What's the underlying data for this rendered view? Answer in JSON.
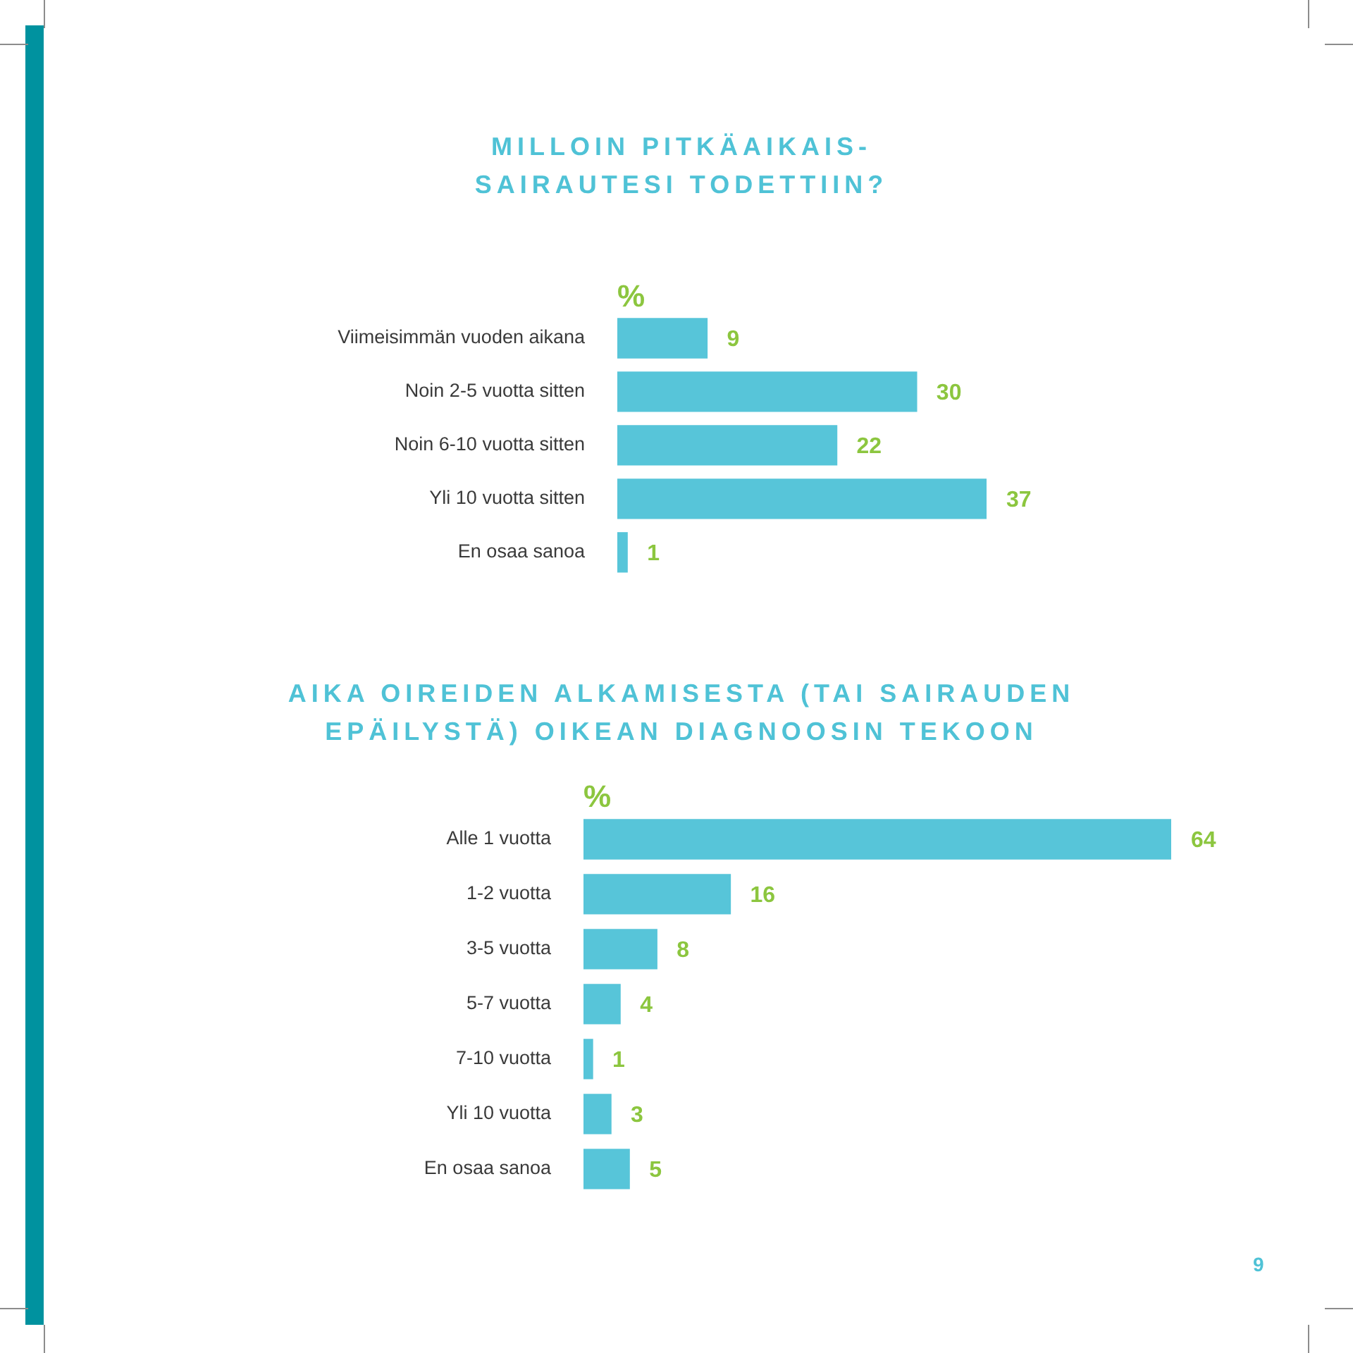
{
  "chart_data": [
    {
      "type": "bar",
      "orientation": "horizontal",
      "title": "MILLOIN PITKÄAIKAIS-SAIRAUTESI TODETTIIN?",
      "xlabel": "%",
      "categories": [
        "Viimeisimmän vuoden aikana",
        "Noin 2-5 vuotta sitten",
        "Noin 6-10 vuotta sitten",
        "Yli 10 vuotta sitten",
        "En osaa sanoa"
      ],
      "values": [
        9,
        30,
        22,
        37,
        1
      ],
      "color": "#57c5d9",
      "data_labels": true
    },
    {
      "type": "bar",
      "orientation": "horizontal",
      "title": "AIKA OIREIDEN ALKAMISESTA (TAI SAIRAUDEN EPÄILYSTÄ) OIKEAN DIAGNOOSIN TEKOON",
      "xlabel": "%",
      "categories": [
        "Alle 1 vuotta",
        "1-2 vuotta",
        "3-5 vuotta",
        "5-7 vuotta",
        "7-10 vuotta",
        "Yli 10 vuotta",
        "En osaa sanoa"
      ],
      "values": [
        64,
        16,
        8,
        4,
        1,
        3,
        5
      ],
      "color": "#57c5d9",
      "data_labels": true,
      "annotations": [
        "9"
      ]
    }
  ]
}
